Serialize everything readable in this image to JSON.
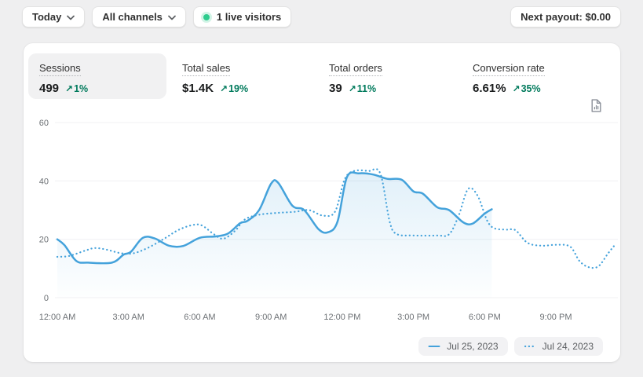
{
  "topbar": {
    "date_range_button": "Today",
    "channels_button": "All channels",
    "live_visitors_badge": "1 live visitors",
    "next_payout_button": "Next payout: $0.00"
  },
  "metrics": [
    {
      "label": "Sessions",
      "value": "499",
      "delta": "1%",
      "direction": "up",
      "selected": true
    },
    {
      "label": "Total sales",
      "value": "$1.4K",
      "delta": "19%",
      "direction": "up",
      "selected": false
    },
    {
      "label": "Total orders",
      "value": "39",
      "delta": "11%",
      "direction": "up",
      "selected": false
    },
    {
      "label": "Conversion rate",
      "value": "6.61%",
      "delta": "35%",
      "direction": "up",
      "selected": false
    }
  ],
  "icons": {
    "delta_arrow_glyph": "↗",
    "chevron_down": "chevron-down",
    "live_indicator": "green-dot",
    "report": "report-document"
  },
  "colors": {
    "accent_blue": "#44A2DB",
    "success_green": "#007A5C",
    "live_dot_green": "#2ECC8E",
    "page_bg": "#EFEFF0",
    "card_bg": "#FFFFFF"
  },
  "chart_data": {
    "type": "line",
    "title": "",
    "xlabel": "",
    "ylabel": "",
    "grid": true,
    "legend_position": "bottom-right",
    "x_unit": "hour-of-day",
    "xlim_hours": [
      0,
      24
    ],
    "ylim": [
      0,
      62
    ],
    "y_ticks": [
      0,
      20,
      40,
      60
    ],
    "x_ticks": [
      {
        "h": 0,
        "label": "12:00 AM"
      },
      {
        "h": 3,
        "label": "3:00 AM"
      },
      {
        "h": 6,
        "label": "6:00 AM"
      },
      {
        "h": 9,
        "label": "9:00 AM"
      },
      {
        "h": 12,
        "label": "12:00 PM"
      },
      {
        "h": 15,
        "label": "3:00 PM"
      },
      {
        "h": 18,
        "label": "6:00 PM"
      },
      {
        "h": 21,
        "label": "9:00 PM"
      }
    ],
    "series": [
      {
        "name": "Jul 25, 2023",
        "style": "solid",
        "area_fill": true,
        "points": [
          [
            0,
            20
          ],
          [
            0.3,
            18
          ],
          [
            0.8,
            12.6
          ],
          [
            1.3,
            12
          ],
          [
            2.3,
            12
          ],
          [
            2.8,
            14.8
          ],
          [
            3.1,
            15.7
          ],
          [
            3.6,
            20.5
          ],
          [
            4.1,
            20.3
          ],
          [
            4.7,
            17.8
          ],
          [
            5.3,
            17.7
          ],
          [
            6.0,
            20.5
          ],
          [
            6.7,
            21
          ],
          [
            7.2,
            22
          ],
          [
            7.7,
            25.5
          ],
          [
            8.0,
            26.3
          ],
          [
            8.5,
            30
          ],
          [
            9.0,
            39
          ],
          [
            9.3,
            39.4
          ],
          [
            9.9,
            31.5
          ],
          [
            10.4,
            30
          ],
          [
            11.0,
            23.5
          ],
          [
            11.4,
            22.4
          ],
          [
            11.8,
            26
          ],
          [
            12.2,
            41.3
          ],
          [
            12.7,
            42.6
          ],
          [
            13.3,
            42.2
          ],
          [
            13.9,
            40.7
          ],
          [
            14.5,
            40.4
          ],
          [
            15.0,
            36.4
          ],
          [
            15.4,
            35.6
          ],
          [
            16.0,
            31
          ],
          [
            16.5,
            30
          ],
          [
            17.1,
            25.8
          ],
          [
            17.5,
            25.4
          ],
          [
            18.0,
            28.8
          ],
          [
            18.3,
            30.3
          ]
        ]
      },
      {
        "name": "Jul 24, 2023",
        "style": "dotted",
        "area_fill": false,
        "points": [
          [
            0,
            14
          ],
          [
            0.5,
            14.3
          ],
          [
            1.2,
            16.2
          ],
          [
            1.6,
            17
          ],
          [
            2.1,
            16.4
          ],
          [
            2.7,
            15.2
          ],
          [
            3.2,
            15.2
          ],
          [
            3.8,
            17
          ],
          [
            4.5,
            20.2
          ],
          [
            5.1,
            23.2
          ],
          [
            5.7,
            24.9
          ],
          [
            6.1,
            24.7
          ],
          [
            6.6,
            21.7
          ],
          [
            7.0,
            20.2
          ],
          [
            7.5,
            23
          ],
          [
            7.9,
            26.8
          ],
          [
            8.5,
            28.4
          ],
          [
            9.2,
            29
          ],
          [
            10.0,
            29.4
          ],
          [
            10.6,
            30
          ],
          [
            11.2,
            28.1
          ],
          [
            11.7,
            29.5
          ],
          [
            12.1,
            40.5
          ],
          [
            12.5,
            43.4
          ],
          [
            13.1,
            43.4
          ],
          [
            13.6,
            42.6
          ],
          [
            14.0,
            26
          ],
          [
            14.3,
            21.8
          ],
          [
            15.0,
            21.3
          ],
          [
            16.0,
            21.3
          ],
          [
            16.5,
            21.7
          ],
          [
            16.9,
            28
          ],
          [
            17.3,
            37.2
          ],
          [
            17.7,
            35
          ],
          [
            18.1,
            26.5
          ],
          [
            18.4,
            23.8
          ],
          [
            18.9,
            23.3
          ],
          [
            19.3,
            23.1
          ],
          [
            19.8,
            18.8
          ],
          [
            20.4,
            17.8
          ],
          [
            21.0,
            18.1
          ],
          [
            21.6,
            17.5
          ],
          [
            22.0,
            12.5
          ],
          [
            22.4,
            10.4
          ],
          [
            22.8,
            10.8
          ],
          [
            23.2,
            15.2
          ],
          [
            23.5,
            18.2
          ]
        ]
      }
    ]
  }
}
